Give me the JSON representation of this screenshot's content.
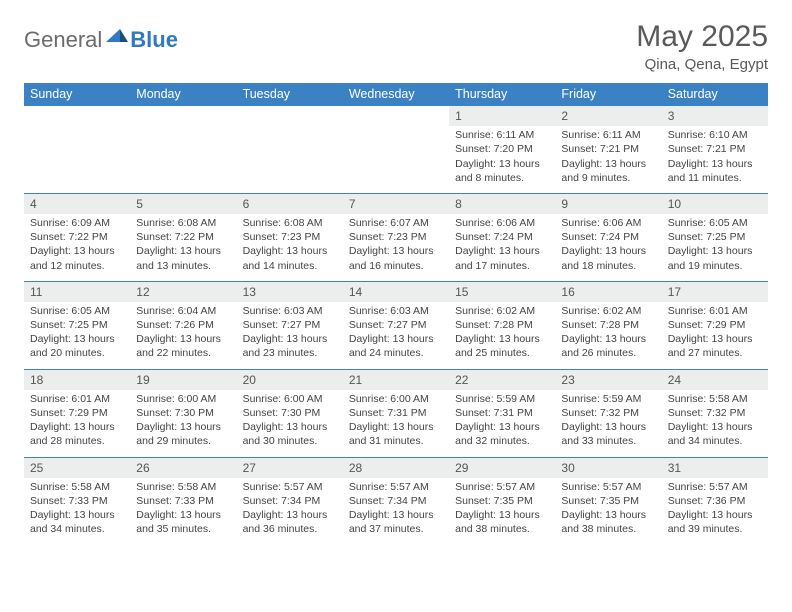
{
  "logo": {
    "part1": "General",
    "part2": "Blue"
  },
  "title": "May 2025",
  "location": "Qina, Qena, Egypt",
  "colors": {
    "header_bg": "#3b82c4",
    "header_text": "#ffffff",
    "daynum_bg": "#eceded",
    "border": "#3b82c4",
    "logo_gray": "#6b6b6b",
    "logo_blue": "#2f7ac0",
    "text": "#444444"
  },
  "day_labels": [
    "Sunday",
    "Monday",
    "Tuesday",
    "Wednesday",
    "Thursday",
    "Friday",
    "Saturday"
  ],
  "weeks": [
    {
      "nums": [
        "",
        "",
        "",
        "",
        "1",
        "2",
        "3"
      ],
      "cells": [
        {},
        {},
        {},
        {},
        {
          "sunrise": "Sunrise: 6:11 AM",
          "sunset": "Sunset: 7:20 PM",
          "daylight": "Daylight: 13 hours and 8 minutes."
        },
        {
          "sunrise": "Sunrise: 6:11 AM",
          "sunset": "Sunset: 7:21 PM",
          "daylight": "Daylight: 13 hours and 9 minutes."
        },
        {
          "sunrise": "Sunrise: 6:10 AM",
          "sunset": "Sunset: 7:21 PM",
          "daylight": "Daylight: 13 hours and 11 minutes."
        }
      ]
    },
    {
      "nums": [
        "4",
        "5",
        "6",
        "7",
        "8",
        "9",
        "10"
      ],
      "cells": [
        {
          "sunrise": "Sunrise: 6:09 AM",
          "sunset": "Sunset: 7:22 PM",
          "daylight": "Daylight: 13 hours and 12 minutes."
        },
        {
          "sunrise": "Sunrise: 6:08 AM",
          "sunset": "Sunset: 7:22 PM",
          "daylight": "Daylight: 13 hours and 13 minutes."
        },
        {
          "sunrise": "Sunrise: 6:08 AM",
          "sunset": "Sunset: 7:23 PM",
          "daylight": "Daylight: 13 hours and 14 minutes."
        },
        {
          "sunrise": "Sunrise: 6:07 AM",
          "sunset": "Sunset: 7:23 PM",
          "daylight": "Daylight: 13 hours and 16 minutes."
        },
        {
          "sunrise": "Sunrise: 6:06 AM",
          "sunset": "Sunset: 7:24 PM",
          "daylight": "Daylight: 13 hours and 17 minutes."
        },
        {
          "sunrise": "Sunrise: 6:06 AM",
          "sunset": "Sunset: 7:24 PM",
          "daylight": "Daylight: 13 hours and 18 minutes."
        },
        {
          "sunrise": "Sunrise: 6:05 AM",
          "sunset": "Sunset: 7:25 PM",
          "daylight": "Daylight: 13 hours and 19 minutes."
        }
      ]
    },
    {
      "nums": [
        "11",
        "12",
        "13",
        "14",
        "15",
        "16",
        "17"
      ],
      "cells": [
        {
          "sunrise": "Sunrise: 6:05 AM",
          "sunset": "Sunset: 7:25 PM",
          "daylight": "Daylight: 13 hours and 20 minutes."
        },
        {
          "sunrise": "Sunrise: 6:04 AM",
          "sunset": "Sunset: 7:26 PM",
          "daylight": "Daylight: 13 hours and 22 minutes."
        },
        {
          "sunrise": "Sunrise: 6:03 AM",
          "sunset": "Sunset: 7:27 PM",
          "daylight": "Daylight: 13 hours and 23 minutes."
        },
        {
          "sunrise": "Sunrise: 6:03 AM",
          "sunset": "Sunset: 7:27 PM",
          "daylight": "Daylight: 13 hours and 24 minutes."
        },
        {
          "sunrise": "Sunrise: 6:02 AM",
          "sunset": "Sunset: 7:28 PM",
          "daylight": "Daylight: 13 hours and 25 minutes."
        },
        {
          "sunrise": "Sunrise: 6:02 AM",
          "sunset": "Sunset: 7:28 PM",
          "daylight": "Daylight: 13 hours and 26 minutes."
        },
        {
          "sunrise": "Sunrise: 6:01 AM",
          "sunset": "Sunset: 7:29 PM",
          "daylight": "Daylight: 13 hours and 27 minutes."
        }
      ]
    },
    {
      "nums": [
        "18",
        "19",
        "20",
        "21",
        "22",
        "23",
        "24"
      ],
      "cells": [
        {
          "sunrise": "Sunrise: 6:01 AM",
          "sunset": "Sunset: 7:29 PM",
          "daylight": "Daylight: 13 hours and 28 minutes."
        },
        {
          "sunrise": "Sunrise: 6:00 AM",
          "sunset": "Sunset: 7:30 PM",
          "daylight": "Daylight: 13 hours and 29 minutes."
        },
        {
          "sunrise": "Sunrise: 6:00 AM",
          "sunset": "Sunset: 7:30 PM",
          "daylight": "Daylight: 13 hours and 30 minutes."
        },
        {
          "sunrise": "Sunrise: 6:00 AM",
          "sunset": "Sunset: 7:31 PM",
          "daylight": "Daylight: 13 hours and 31 minutes."
        },
        {
          "sunrise": "Sunrise: 5:59 AM",
          "sunset": "Sunset: 7:31 PM",
          "daylight": "Daylight: 13 hours and 32 minutes."
        },
        {
          "sunrise": "Sunrise: 5:59 AM",
          "sunset": "Sunset: 7:32 PM",
          "daylight": "Daylight: 13 hours and 33 minutes."
        },
        {
          "sunrise": "Sunrise: 5:58 AM",
          "sunset": "Sunset: 7:32 PM",
          "daylight": "Daylight: 13 hours and 34 minutes."
        }
      ]
    },
    {
      "nums": [
        "25",
        "26",
        "27",
        "28",
        "29",
        "30",
        "31"
      ],
      "cells": [
        {
          "sunrise": "Sunrise: 5:58 AM",
          "sunset": "Sunset: 7:33 PM",
          "daylight": "Daylight: 13 hours and 34 minutes."
        },
        {
          "sunrise": "Sunrise: 5:58 AM",
          "sunset": "Sunset: 7:33 PM",
          "daylight": "Daylight: 13 hours and 35 minutes."
        },
        {
          "sunrise": "Sunrise: 5:57 AM",
          "sunset": "Sunset: 7:34 PM",
          "daylight": "Daylight: 13 hours and 36 minutes."
        },
        {
          "sunrise": "Sunrise: 5:57 AM",
          "sunset": "Sunset: 7:34 PM",
          "daylight": "Daylight: 13 hours and 37 minutes."
        },
        {
          "sunrise": "Sunrise: 5:57 AM",
          "sunset": "Sunset: 7:35 PM",
          "daylight": "Daylight: 13 hours and 38 minutes."
        },
        {
          "sunrise": "Sunrise: 5:57 AM",
          "sunset": "Sunset: 7:35 PM",
          "daylight": "Daylight: 13 hours and 38 minutes."
        },
        {
          "sunrise": "Sunrise: 5:57 AM",
          "sunset": "Sunset: 7:36 PM",
          "daylight": "Daylight: 13 hours and 39 minutes."
        }
      ]
    }
  ]
}
